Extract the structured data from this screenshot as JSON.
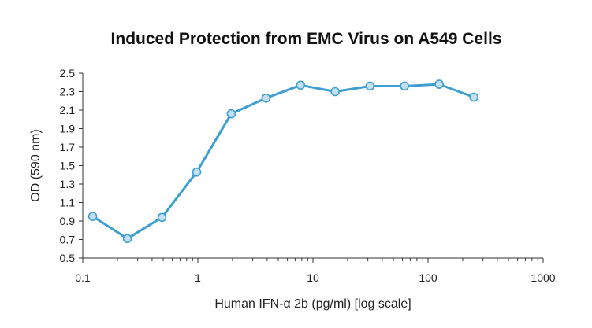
{
  "chart_data": {
    "type": "line",
    "title": "Induced Protection from EMC Virus on A549 Cells",
    "xlabel": "Human IFN-α 2b (pg/ml) [log scale]",
    "ylabel": "OD (590 nm)",
    "x_scale": "log",
    "xlim": [
      0.1,
      1000
    ],
    "ylim": [
      0.5,
      2.5
    ],
    "x_ticks": [
      0.1,
      1,
      10,
      100,
      1000
    ],
    "x_tick_labels": [
      "0.1",
      "1",
      "10",
      "100",
      "1000"
    ],
    "y_ticks": [
      0.5,
      0.7,
      0.9,
      1.1,
      1.3,
      1.5,
      1.7,
      1.9,
      2.1,
      2.3,
      2.5
    ],
    "y_tick_labels": [
      "0.5",
      "0.7",
      "0.9",
      "1.1",
      "1.3",
      "1.5",
      "1.7",
      "1.9",
      "2.1",
      "2.3",
      "2.5"
    ],
    "grid": false,
    "series": [
      {
        "color": "#3d9fd0",
        "marker_fill": "#c5dff0",
        "x": [
          0.122,
          0.244,
          0.488,
          0.977,
          1.95,
          3.91,
          7.81,
          15.6,
          31.3,
          62.5,
          125,
          250
        ],
        "y": [
          0.95,
          0.71,
          0.94,
          1.43,
          2.06,
          2.23,
          2.37,
          2.3,
          2.36,
          2.36,
          2.38,
          2.24
        ]
      }
    ]
  }
}
